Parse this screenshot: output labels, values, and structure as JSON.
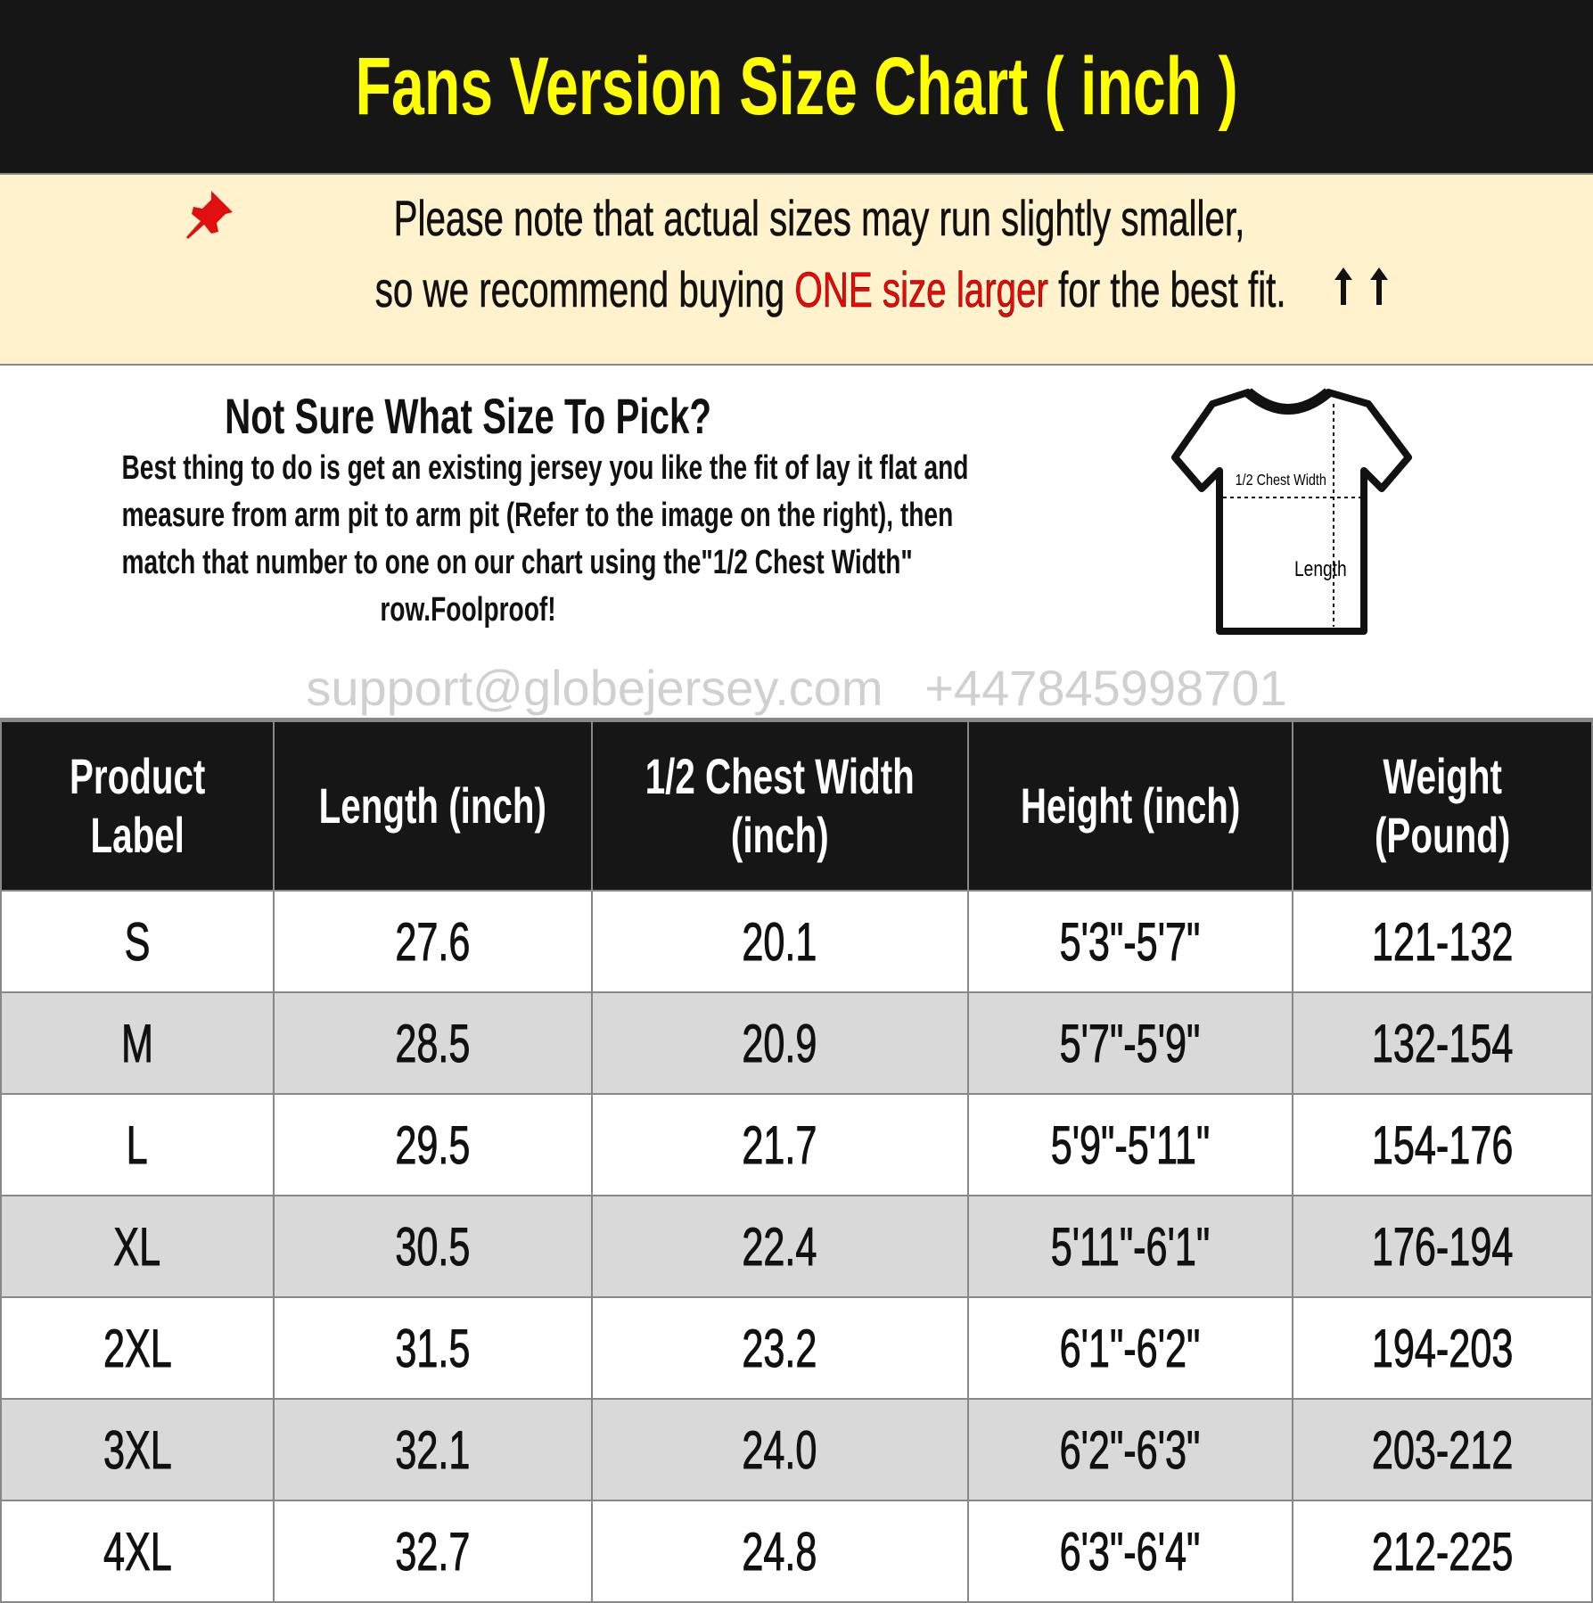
{
  "title": "Fans Version Size Chart ( inch )",
  "notice": {
    "line1": "Please note that actual sizes may run slightly smaller,",
    "line2_pre": "so we recommend buying ",
    "line2_highlight": "ONE size larger",
    "line2_post": " for the best fit.",
    "icon": "pushpin-icon",
    "highlight_color": "#ff0000"
  },
  "info": {
    "heading": "Not Sure What Size To Pick?",
    "lines": [
      "Best thing to do is get an existing jersey you like the fit of lay it flat and",
      "measure from arm pit to arm pit (Refer to the image on the right), then",
      "match that number to one on our chart using the\"1/2 Chest Width\"",
      "row.Foolproof!"
    ],
    "diagram_labels": {
      "chest": "1/2 Chest Width",
      "length": "Length"
    }
  },
  "table": {
    "headers": [
      [
        "Product",
        "Label"
      ],
      [
        "Length (inch)"
      ],
      [
        "1/2 Chest Width",
        "(inch)"
      ],
      [
        "Height (inch)"
      ],
      [
        "Weight",
        "(Pound)"
      ]
    ],
    "rows": [
      [
        "S",
        "27.6",
        "20.1",
        "5'3\"-5'7\"",
        "121-132"
      ],
      [
        "M",
        "28.5",
        "20.9",
        "5'7\"-5'9\"",
        "132-154"
      ],
      [
        "L",
        "29.5",
        "21.7",
        "5'9\"-5'11\"",
        "154-176"
      ],
      [
        "XL",
        "30.5",
        "22.4",
        "5'11\"-6'1\"",
        "176-194"
      ],
      [
        "2XL",
        "31.5",
        "23.2",
        "6'1\"-6'2\"",
        "194-203"
      ],
      [
        "3XL",
        "32.1",
        "24.0",
        "6'2\"-6'3\"",
        "203-212"
      ],
      [
        "4XL",
        "32.7",
        "24.8",
        "6'3\"-6'4\"",
        "212-225"
      ]
    ]
  },
  "watermark": "support@globejersey.com   +447845998701",
  "colors": {
    "title_bg": "#161616",
    "title_text": "#ffff00",
    "notice_bg": "#fff2cc",
    "alt_row": "#d9d9d9"
  }
}
